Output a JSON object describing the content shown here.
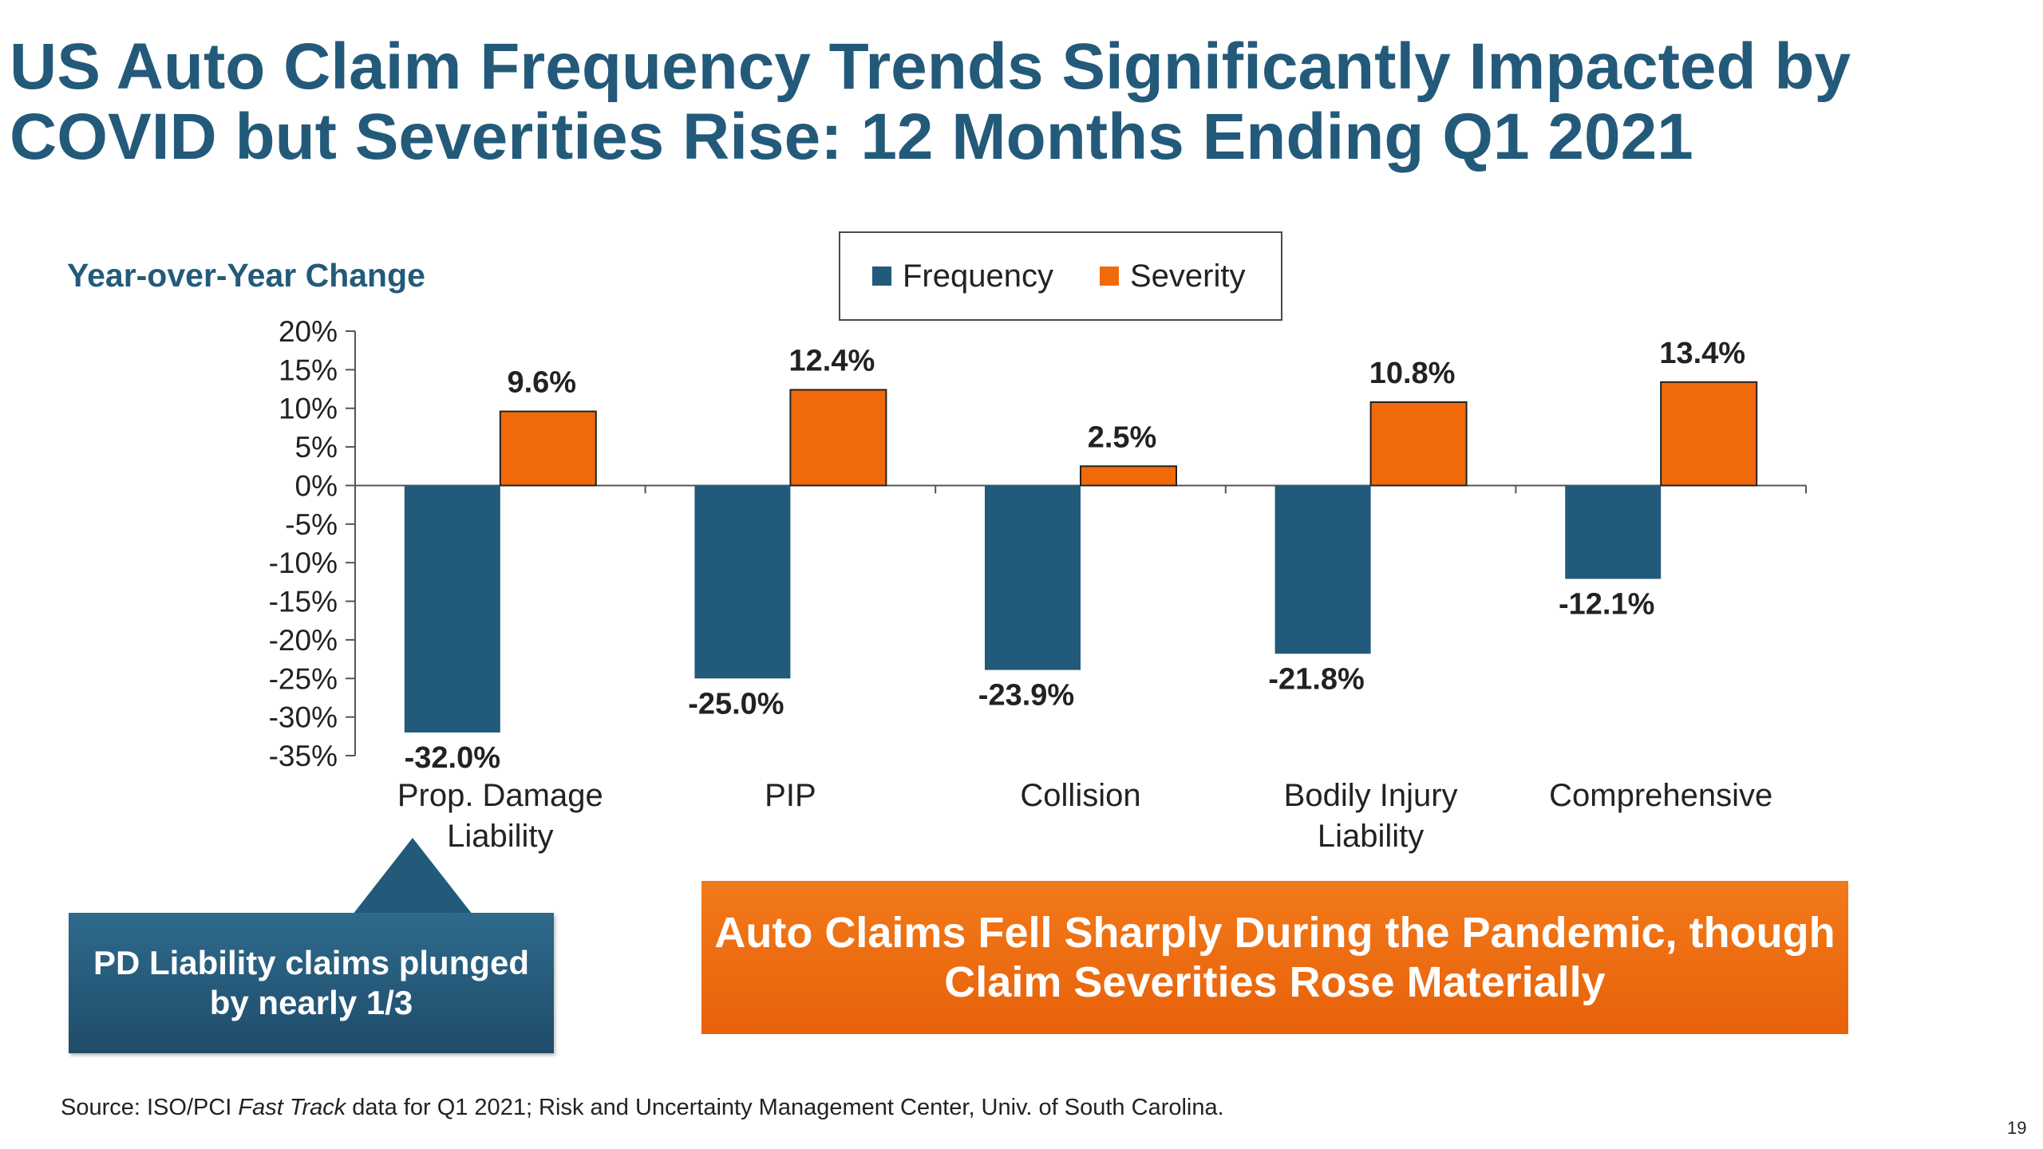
{
  "title": {
    "line1": "US Auto Claim Frequency Trends Significantly Impacted by",
    "line2": "COVID but Severities Rise: 12 Months Ending Q1 2021"
  },
  "legend": {
    "items": [
      {
        "label": "Frequency",
        "color": "#215a7a"
      },
      {
        "label": "Severity",
        "color": "#f06a0a"
      }
    ]
  },
  "chart_data": {
    "type": "bar",
    "ylabel": "Year-over-Year Change",
    "ylim": [
      -35,
      20
    ],
    "yticks": [
      "20%",
      "15%",
      "10%",
      "5%",
      "0%",
      "-5%",
      "-10%",
      "-15%",
      "-20%",
      "-25%",
      "-30%",
      "-35%"
    ],
    "categories": [
      [
        "Prop. Damage",
        "Liability"
      ],
      [
        "PIP"
      ],
      [
        "Collision"
      ],
      [
        "Bodily Injury",
        "Liability"
      ],
      [
        "Comprehensive"
      ]
    ],
    "series": [
      {
        "name": "Frequency",
        "color": "#215a7a",
        "values": [
          -32.0,
          -25.0,
          -23.9,
          -21.8,
          -12.1
        ],
        "labels": [
          "-32.0%",
          "-25.0%",
          "-23.9%",
          "-21.8%",
          "-12.1%"
        ]
      },
      {
        "name": "Severity",
        "color": "#f06a0a",
        "values": [
          9.6,
          12.4,
          2.5,
          10.8,
          13.4
        ],
        "labels": [
          "9.6%",
          "12.4%",
          "2.5%",
          "10.8%",
          "13.4%"
        ]
      }
    ],
    "legend": "top-center",
    "grid": false
  },
  "callout": {
    "line1": "PD Liability claims plunged",
    "line2": "by nearly 1/3"
  },
  "banner": {
    "line1": "Auto Claims Fell Sharply During the Pandemic, though",
    "line2": "Claim Severities Rose Materially"
  },
  "source": {
    "prefix": "Source: ISO/PCI ",
    "italic": "Fast Track",
    "suffix": " data for Q1 2021; Risk and Uncertainty Management Center, Univ. of South Carolina."
  },
  "page_number": "19"
}
